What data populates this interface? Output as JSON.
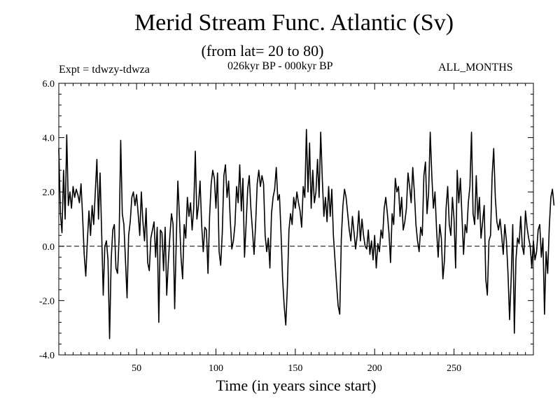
{
  "header": {
    "title": "Merid Stream Func. Atlantic (Sv)",
    "subtitle": "(from lat= 20 to 80)",
    "experiment": "Expt = tdwzy-tdwza",
    "period": "026kyr BP - 000kyr BP",
    "months": "ALL_MONTHS"
  },
  "chart_data": {
    "type": "line",
    "title": "Merid Stream Func. Atlantic (Sv)",
    "subtitle": "(from lat= 20 to 80)",
    "xlabel": "Time (in years since start)",
    "ylabel": "",
    "xlim": [
      1,
      300
    ],
    "ylim": [
      -4.0,
      6.0
    ],
    "x_ticks": [
      50,
      100,
      150,
      200,
      250
    ],
    "x_tick_labels": [
      "50",
      "100",
      "150",
      "200",
      "250"
    ],
    "y_ticks": [
      -4.0,
      -2.0,
      0.0,
      2.0,
      4.0,
      6.0
    ],
    "y_tick_labels": [
      "-4.0",
      "-2.0",
      "0.0",
      "2.0",
      "4.0",
      "6.0"
    ],
    "reference_line": {
      "y": 0.0,
      "style": "dashed"
    },
    "grid": false,
    "series": [
      {
        "color": "#000000",
        "x_start": 1,
        "x_step": 1,
        "values": [
          3.6,
          1.2,
          0.5,
          2.8,
          1.0,
          4.1,
          1.5,
          2.0,
          1.4,
          2.2,
          1.8,
          2.1,
          1.9,
          1.6,
          2.3,
          1.1,
          -0.3,
          -1.1,
          0.2,
          1.3,
          0.4,
          1.5,
          0.8,
          2.0,
          3.2,
          1.0,
          2.7,
          0.5,
          -1.8,
          0.0,
          0.2,
          -0.5,
          -3.4,
          -0.5,
          0.6,
          0.8,
          -0.8,
          -1.0,
          0.3,
          3.9,
          1.2,
          0.8,
          -0.5,
          -1.9,
          0.4,
          0.9,
          1.8,
          2.0,
          1.5,
          1.9,
          1.2,
          0.4,
          2.0,
          0.9,
          0.2,
          1.4,
          -0.6,
          -0.9,
          0.3,
          0.6,
          0.9,
          -0.4,
          0.7,
          -2.8,
          0.6,
          0.5,
          -0.9,
          0.7,
          -1.8,
          -0.6,
          0.4,
          1.2,
          0.8,
          -2.3,
          0.2,
          2.4,
          1.1,
          -0.4,
          -1.2,
          0.8,
          0.3,
          1.8,
          1.1,
          1.6,
          0.6,
          1.4,
          3.5,
          1.0,
          1.5,
          2.4,
          0.8,
          -0.2,
          0.7,
          0.6,
          -1.0,
          1.1,
          2.3,
          2.8,
          2.5,
          1.4,
          2.7,
          -0.2,
          -0.7,
          0.5,
          2.6,
          3.0,
          1.8,
          2.4,
          1.0,
          -0.1,
          0.2,
          0.8,
          2.2,
          1.6,
          3.0,
          1.3,
          2.5,
          -0.4,
          0.8,
          2.1,
          2.6,
          1.4,
          0.6,
          -0.3,
          0.8,
          2.3,
          2.8,
          2.2,
          2.6,
          2.3,
          0.4,
          -0.2,
          0.3,
          -0.8,
          1.2,
          1.8,
          2.1,
          2.9,
          1.7,
          1.9,
          0.5,
          -1.2,
          -2.2,
          -2.9,
          -1.5,
          0.6,
          1.2,
          0.8,
          1.8,
          1.4,
          2.0,
          1.6,
          1.3,
          0.7,
          2.2,
          1.8,
          4.3,
          2.0,
          3.8,
          1.4,
          2.8,
          1.6,
          2.0,
          3.2,
          1.8,
          4.2,
          2.5,
          1.1,
          1.8,
          0.9,
          2.2,
          1.1,
          2.1,
          0.4,
          -0.5,
          -1.4,
          -2.2,
          -2.5,
          0.3,
          1.5,
          2.1,
          1.8,
          1.2,
          0.6,
          0.2,
          1.1,
          0.5,
          -0.1,
          0.4,
          1.3,
          0.2,
          1.0,
          0.4,
          0.0,
          -0.1,
          0.6,
          -0.3,
          0.2,
          -0.5,
          0.4,
          -0.8,
          0.1,
          -0.2,
          0.6,
          0.3,
          1.4,
          1.8,
          1.2,
          0.5,
          -0.6,
          1.2,
          0.8,
          2.5,
          2.0,
          2.2,
          1.1,
          1.8,
          0.6,
          0.9,
          1.4,
          2.7,
          2.2,
          1.6,
          2.9,
          2.0,
          0.8,
          0.2,
          -0.2,
          0.7,
          0.4,
          2.6,
          3.1,
          1.2,
          2.0,
          4.2,
          2.6,
          1.4,
          2.0,
          0.6,
          -0.4,
          0.8,
          0.3,
          -1.2,
          -0.5,
          1.4,
          2.2,
          0.8,
          0.4,
          1.8,
          1.0,
          -0.8,
          2.8,
          1.6,
          2.5,
          1.1,
          -0.3,
          0.8,
          0.5,
          1.6,
          2.2,
          4.2,
          1.2,
          0.8,
          2.6,
          1.0,
          1.8,
          0.3,
          0.9,
          1.5,
          -1.2,
          -1.8,
          0.2,
          0.4,
          2.6,
          3.6,
          1.8,
          0.9,
          0.6,
          1.0,
          0.4,
          -0.3,
          0.8,
          0.2,
          -1.0,
          -2.7,
          -1.2,
          0.8,
          -3.2,
          -0.5,
          0.3,
          0.1,
          1.1,
          0.0,
          -0.3,
          1.3,
          0.7,
          0.3,
          0.0,
          -0.8,
          0.2,
          -0.5,
          -0.2,
          0.6,
          0.8,
          -0.4,
          0.3,
          -2.5,
          -0.2,
          -1.0,
          0.7,
          1.8,
          2.1,
          1.5
        ]
      }
    ]
  }
}
